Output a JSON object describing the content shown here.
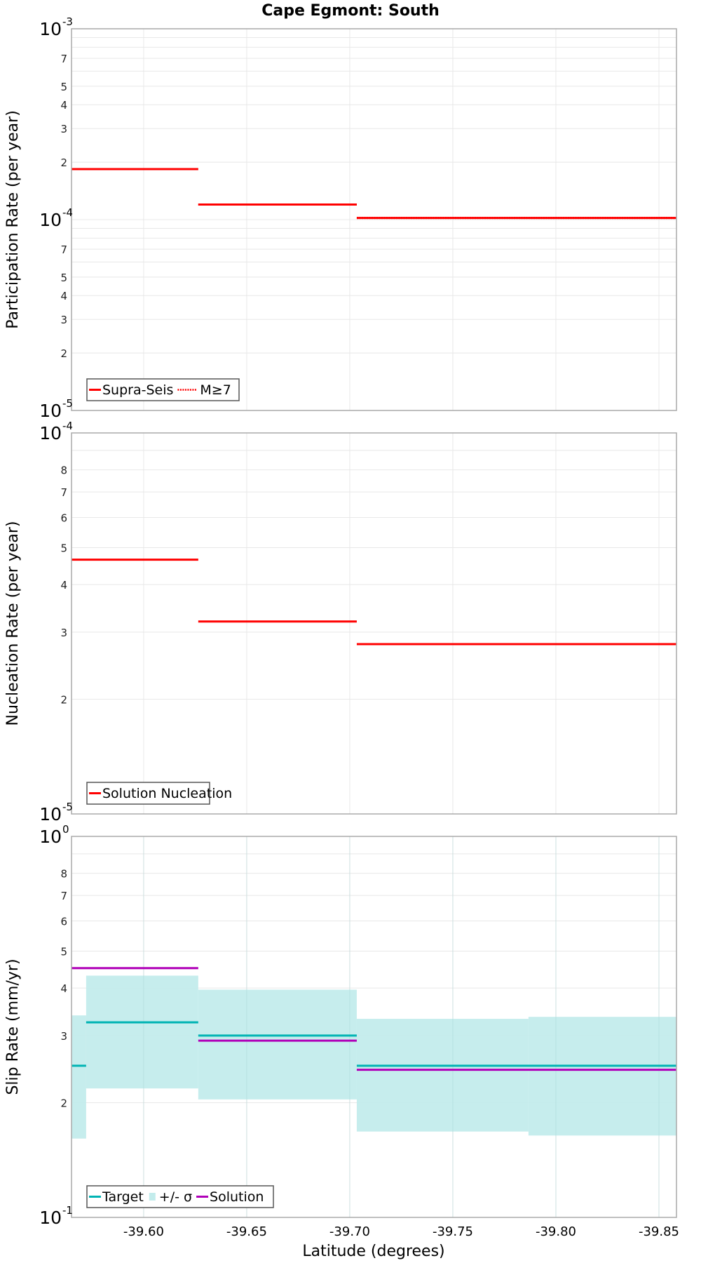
{
  "title": "Cape Egmont: South",
  "colors": {
    "supra_seis": "#ff0000",
    "m7": "#ff0000",
    "nucleation": "#ff0000",
    "target": "#00b3b3",
    "sigma_band": "#c3ecec",
    "solution": "#b000b8",
    "grid": "#e8e8e8",
    "frame": "#aaaaaa"
  },
  "chart_data": [
    {
      "type": "line",
      "subtype": "step",
      "panel": "top",
      "title": "Cape Egmont: South",
      "xlabel": "Latitude (degrees)",
      "ylabel": "Participation Rate (per year)",
      "yscale": "log",
      "ylim": [
        1e-05,
        0.001
      ],
      "xlim": [
        -39.565,
        -39.8585
      ],
      "y_decade_labels": [
        {
          "base": "10",
          "exp": "-3",
          "value": 0.001
        },
        {
          "base": "10",
          "exp": "-4",
          "value": 0.0001
        },
        {
          "base": "10",
          "exp": "-5",
          "value": 1e-05
        }
      ],
      "y_minor_labels": [
        {
          "label": "7",
          "value": 0.0007
        },
        {
          "label": "5",
          "value": 0.0005
        },
        {
          "label": "4",
          "value": 0.0004
        },
        {
          "label": "3",
          "value": 0.0003
        },
        {
          "label": "2",
          "value": 0.0002
        },
        {
          "label": "7",
          "value": 7e-05
        },
        {
          "label": "5",
          "value": 5e-05
        },
        {
          "label": "4",
          "value": 4e-05
        },
        {
          "label": "3",
          "value": 3e-05
        },
        {
          "label": "2",
          "value": 2e-05
        }
      ],
      "grid": true,
      "legend": {
        "position": "lower-left",
        "entries": [
          {
            "label": "Supra-Seis",
            "style": "solid",
            "color": "#ff0000"
          },
          {
            "label": "M≥7",
            "style": "dotted",
            "color": "#ff0000"
          }
        ]
      },
      "series": [
        {
          "name": "Supra-Seis",
          "style": "solid",
          "segments": [
            {
              "x0": -39.565,
              "x1": -39.6265,
              "y": 0.000184
            },
            {
              "x0": -39.6265,
              "x1": -39.7034,
              "y": 0.00012
            },
            {
              "x0": -39.7034,
              "x1": -39.8585,
              "y": 0.000102
            }
          ]
        },
        {
          "name": "M≥7",
          "style": "dotted",
          "segments": [
            {
              "x0": -39.565,
              "x1": -39.6265,
              "y": 0.000184
            },
            {
              "x0": -39.6265,
              "x1": -39.7034,
              "y": 0.00012
            },
            {
              "x0": -39.7034,
              "x1": -39.8585,
              "y": 0.000102
            }
          ]
        }
      ]
    },
    {
      "type": "line",
      "subtype": "step",
      "panel": "middle",
      "xlabel": "Latitude (degrees)",
      "ylabel": "Nucleation Rate (per year)",
      "yscale": "log",
      "ylim": [
        1e-05,
        0.0001
      ],
      "xlim": [
        -39.565,
        -39.8585
      ],
      "y_decade_labels": [
        {
          "base": "10",
          "exp": "-4",
          "value": 0.0001
        },
        {
          "base": "10",
          "exp": "-5",
          "value": 1e-05
        }
      ],
      "y_minor_labels": [
        {
          "label": "8",
          "value": 8e-05
        },
        {
          "label": "7",
          "value": 7e-05
        },
        {
          "label": "6",
          "value": 6e-05
        },
        {
          "label": "5",
          "value": 5e-05
        },
        {
          "label": "4",
          "value": 4e-05
        },
        {
          "label": "3",
          "value": 3e-05
        },
        {
          "label": "2",
          "value": 2e-05
        }
      ],
      "grid": true,
      "legend": {
        "position": "lower-left",
        "entries": [
          {
            "label": "Solution Nucleation",
            "style": "solid",
            "color": "#ff0000"
          }
        ]
      },
      "series": [
        {
          "name": "Solution Nucleation",
          "style": "solid",
          "segments": [
            {
              "x0": -39.565,
              "x1": -39.6265,
              "y": 4.65e-05
            },
            {
              "x0": -39.6265,
              "x1": -39.7034,
              "y": 3.2e-05
            },
            {
              "x0": -39.7034,
              "x1": -39.8585,
              "y": 2.79e-05
            }
          ]
        }
      ]
    },
    {
      "type": "line",
      "subtype": "step",
      "panel": "bottom",
      "xlabel": "Latitude (degrees)",
      "ylabel": "Slip Rate (mm/yr)",
      "yscale": "log",
      "ylim": [
        0.1,
        1.0
      ],
      "xlim": [
        -39.565,
        -39.8585
      ],
      "x_ticks": [
        -39.6,
        -39.65,
        -39.7,
        -39.75,
        -39.8,
        -39.85
      ],
      "x_tick_labels": [
        "-39.60",
        "-39.65",
        "-39.70",
        "-39.75",
        "-39.80",
        "-39.85"
      ],
      "y_decade_labels": [
        {
          "base": "10",
          "exp": "0",
          "value": 1.0
        },
        {
          "base": "10",
          "exp": "-1",
          "value": 0.1
        }
      ],
      "y_minor_labels": [
        {
          "label": "8",
          "value": 0.8
        },
        {
          "label": "7",
          "value": 0.7
        },
        {
          "label": "6",
          "value": 0.6
        },
        {
          "label": "5",
          "value": 0.5
        },
        {
          "label": "4",
          "value": 0.4
        },
        {
          "label": "3",
          "value": 0.3
        },
        {
          "label": "2",
          "value": 0.2
        }
      ],
      "grid": true,
      "legend": {
        "position": "lower-left",
        "entries": [
          {
            "label": "Target",
            "style": "solid",
            "color": "#00b3b3"
          },
          {
            "label": "+/- σ",
            "style": "fill",
            "color": "#c3ecec"
          },
          {
            "label": "Solution",
            "style": "solid",
            "color": "#b000b8"
          }
        ]
      },
      "bands": [
        {
          "name": "+/- σ",
          "x0": -39.565,
          "x1": -39.5721,
          "low": 0.161,
          "high": 0.339
        },
        {
          "name": "+/- σ",
          "x0": -39.5721,
          "x1": -39.6265,
          "low": 0.218,
          "high": 0.431
        },
        {
          "name": "+/- σ",
          "x0": -39.6265,
          "x1": -39.7034,
          "low": 0.204,
          "high": 0.396
        },
        {
          "name": "+/- σ",
          "x0": -39.7034,
          "x1": -39.7867,
          "low": 0.168,
          "high": 0.332
        },
        {
          "name": "+/- σ",
          "x0": -39.7867,
          "x1": -39.8585,
          "low": 0.164,
          "high": 0.336
        }
      ],
      "series": [
        {
          "name": "Target",
          "style": "solid",
          "segments": [
            {
              "x0": -39.565,
              "x1": -39.5721,
              "y": 0.25
            },
            {
              "x0": -39.5721,
              "x1": -39.6265,
              "y": 0.325
            },
            {
              "x0": -39.6265,
              "x1": -39.7034,
              "y": 0.3
            },
            {
              "x0": -39.7034,
              "x1": -39.8585,
              "y": 0.25
            }
          ]
        },
        {
          "name": "Solution",
          "style": "solid",
          "segments": [
            {
              "x0": -39.565,
              "x1": -39.6265,
              "y": 0.451
            },
            {
              "x0": -39.6265,
              "x1": -39.7034,
              "y": 0.291
            },
            {
              "x0": -39.7034,
              "x1": -39.8585,
              "y": 0.244
            }
          ]
        }
      ]
    }
  ]
}
